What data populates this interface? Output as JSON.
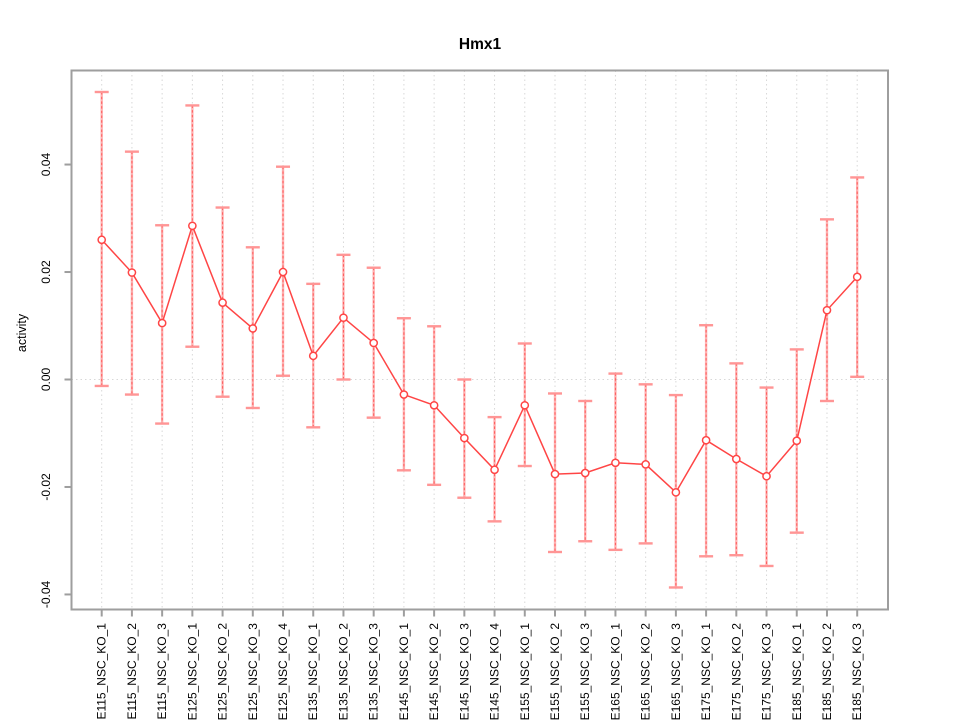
{
  "chart_data": {
    "type": "line",
    "subtype": "means-with-error-bars",
    "title": "Hmx1",
    "xlabel": "",
    "ylabel": "activity",
    "legend": "none",
    "grid": {
      "vertical_dotted_per_category": true,
      "horizontal_dotted_at_zero": true
    },
    "ylim": [
      -0.0428,
      0.0575
    ],
    "y_ticks": [
      {
        "value": -0.04,
        "label": "-0.04"
      },
      {
        "value": -0.02,
        "label": "-0.02"
      },
      {
        "value": 0.0,
        "label": "0.00"
      },
      {
        "value": 0.02,
        "label": "0.02"
      },
      {
        "value": 0.04,
        "label": "0.04"
      }
    ],
    "categories": [
      "E115_NSC_KO_1",
      "E115_NSC_KO_2",
      "E115_NSC_KO_3",
      "E125_NSC_KO_1",
      "E125_NSC_KO_2",
      "E125_NSC_KO_3",
      "E125_NSC_KO_4",
      "E135_NSC_KO_1",
      "E135_NSC_KO_2",
      "E135_NSC_KO_3",
      "E145_NSC_KO_1",
      "E145_NSC_KO_2",
      "E145_NSC_KO_3",
      "E145_NSC_KO_4",
      "E155_NSC_KO_1",
      "E155_NSC_KO_2",
      "E155_NSC_KO_3",
      "E165_NSC_KO_1",
      "E165_NSC_KO_2",
      "E165_NSC_KO_3",
      "E175_NSC_KO_1",
      "E175_NSC_KO_2",
      "E175_NSC_KO_3",
      "E185_NSC_KO_1",
      "E185_NSC_KO_2",
      "E185_NSC_KO_3"
    ],
    "series": [
      {
        "name": "activity",
        "point_style": "open-circle",
        "values": [
          0.026,
          0.0199,
          0.0105,
          0.0286,
          0.0143,
          0.0095,
          0.02,
          0.0044,
          0.0115,
          0.0068,
          -0.0028,
          -0.0048,
          -0.0109,
          -0.0168,
          -0.0048,
          -0.0176,
          -0.0174,
          -0.0155,
          -0.0158,
          -0.021,
          -0.0113,
          -0.0148,
          -0.018,
          -0.0114,
          0.0129,
          0.0191
        ]
      }
    ],
    "error_bars": {
      "lower": [
        -0.0012,
        -0.0028,
        -0.0082,
        0.0061,
        -0.0032,
        -0.0053,
        0.0007,
        -0.0089,
        0.0,
        -0.0071,
        -0.0169,
        -0.0196,
        -0.022,
        -0.0264,
        -0.0161,
        -0.0321,
        -0.0301,
        -0.0317,
        -0.0305,
        -0.0387,
        -0.0329,
        -0.0327,
        -0.0347,
        -0.0285,
        -0.004,
        0.0005
      ],
      "upper": [
        0.0535,
        0.0424,
        0.0287,
        0.051,
        0.032,
        0.0246,
        0.0396,
        0.0178,
        0.0232,
        0.0208,
        0.0114,
        0.0099,
        0.0,
        -0.007,
        0.0067,
        -0.0026,
        -0.004,
        0.0011,
        -0.0009,
        -0.0029,
        0.0101,
        0.003,
        -0.0015,
        0.0056,
        0.0298,
        0.0376
      ]
    },
    "colors": {
      "series_line": "#ff4545",
      "point_stroke": "#ff4545",
      "point_fill": "#ffffff",
      "error_bar_body": "#ff8c8c",
      "error_bar_dash": "#ff5c5c",
      "error_bar_cap": "#ff9595",
      "plot_border": "#9e9e9e",
      "tick_mark": "#9e9e9e",
      "grid_line": "#d8d8d8",
      "zero_line": "#d8d8d8",
      "text": "#000000",
      "background": "#ffffff"
    }
  }
}
